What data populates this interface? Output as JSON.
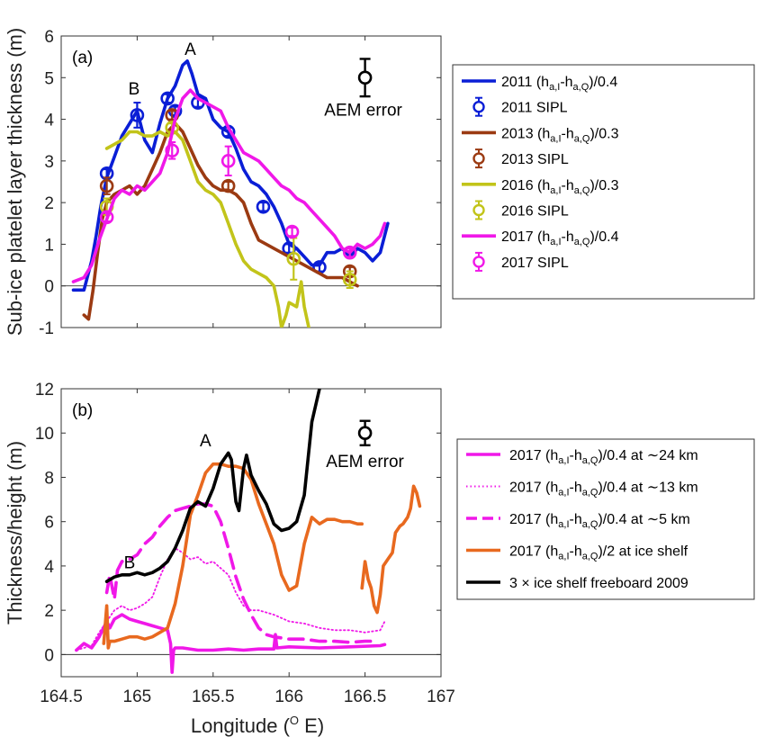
{
  "chart_data": [
    {
      "id": "a",
      "type": "line",
      "panel_label": "(a)",
      "ylabel": "Sub-ice platelet layer thickness (m)",
      "xlim": [
        164.5,
        167
      ],
      "ylim": [
        -1,
        6
      ],
      "yticks": [
        "-1",
        "0",
        "1",
        "2",
        "3",
        "4",
        "5",
        "6"
      ],
      "annotations": [
        {
          "text": "A",
          "x": 165.35,
          "y": 5.55
        },
        {
          "text": "B",
          "x": 164.98,
          "y": 4.6
        }
      ],
      "error_bar": {
        "label": "AEM error",
        "x": 166.5,
        "y": 5.0,
        "err": 0.45
      },
      "legend_position": "outside-right",
      "series": [
        {
          "name": "2011 (hₐ,I-hₐ,Q)/0.4",
          "legend_main": "2011 (h",
          "legend_sub": "a,I",
          "legend_mid": "-h",
          "legend_sub2": "a,Q",
          "legend_tail": ")/0.4",
          "color": "#0a1ed6",
          "kind": "line",
          "x": [
            164.58,
            164.65,
            164.7,
            164.73,
            164.76,
            164.8,
            164.85,
            164.9,
            164.95,
            165.0,
            165.05,
            165.1,
            165.15,
            165.2,
            165.25,
            165.3,
            165.33,
            165.36,
            165.4,
            165.45,
            165.5,
            165.55,
            165.6,
            165.65,
            165.7,
            165.75,
            165.8,
            165.85,
            165.9,
            165.95,
            166.0,
            166.05,
            166.1,
            166.15,
            166.2,
            166.25,
            166.3,
            166.35,
            166.4,
            166.45,
            166.5,
            166.55,
            166.6,
            166.65
          ],
          "y": [
            -0.1,
            -0.1,
            0.6,
            1.2,
            1.9,
            2.6,
            3.1,
            3.6,
            3.9,
            4.2,
            3.5,
            3.2,
            3.9,
            4.5,
            4.8,
            5.3,
            5.4,
            5.1,
            4.6,
            4.5,
            4.0,
            3.8,
            3.7,
            3.3,
            2.8,
            2.5,
            2.4,
            2.2,
            1.9,
            1.5,
            1.0,
            0.9,
            0.7,
            0.5,
            0.5,
            0.8,
            0.8,
            0.9,
            0.7,
            0.9,
            0.8,
            0.6,
            0.8,
            1.5
          ]
        },
        {
          "name": "2011 SIPL",
          "color": "#0a1ed6",
          "kind": "points",
          "x": [
            164.8,
            165.0,
            165.2,
            165.25,
            165.4,
            165.6,
            165.83,
            166.0,
            166.2
          ],
          "y": [
            2.7,
            4.1,
            4.5,
            4.2,
            4.4,
            3.7,
            1.9,
            0.9,
            0.45
          ],
          "err": [
            0.1,
            0.3,
            0.1,
            0.1,
            0.1,
            0.1,
            0.1,
            0.1,
            0.1
          ]
        },
        {
          "name": "2013 (hₐ,I-hₐ,Q)/0.3",
          "legend_main": "2013 (h",
          "legend_sub": "a,I",
          "legend_mid": "-h",
          "legend_sub2": "a,Q",
          "legend_tail": ")/0.3",
          "color": "#9b3a12",
          "kind": "line",
          "x": [
            164.65,
            164.68,
            164.71,
            164.74,
            164.77,
            164.8,
            164.85,
            164.9,
            164.95,
            165.0,
            165.05,
            165.1,
            165.15,
            165.2,
            165.25,
            165.3,
            165.35,
            165.4,
            165.45,
            165.5,
            165.55,
            165.6,
            165.65,
            165.7,
            165.75,
            165.8,
            165.85,
            165.9,
            165.95,
            166.0,
            166.05,
            166.1,
            166.15,
            166.2,
            166.25,
            166.3,
            166.35,
            166.4,
            166.45
          ],
          "y": [
            -0.7,
            -0.8,
            -0.1,
            0.8,
            1.6,
            2.0,
            2.2,
            2.3,
            2.4,
            2.2,
            2.4,
            2.8,
            3.2,
            3.7,
            3.9,
            3.7,
            3.3,
            2.9,
            2.6,
            2.4,
            2.3,
            2.3,
            2.2,
            2.0,
            1.5,
            1.1,
            1.0,
            0.9,
            0.8,
            0.7,
            0.6,
            0.5,
            0.4,
            0.3,
            0.2,
            0.2,
            0.2,
            0.1,
            0.0
          ]
        },
        {
          "name": "2013 SIPL",
          "color": "#9b3a12",
          "kind": "points",
          "x": [
            164.8,
            165.23,
            165.6,
            166.4
          ],
          "y": [
            2.4,
            4.1,
            2.4,
            0.35
          ],
          "err": [
            0.2,
            0.1,
            0.1,
            0.1
          ]
        },
        {
          "name": "2016 (hₐ,I-hₐ,Q)/0.3",
          "legend_main": "2016 (h",
          "legend_sub": "a,I",
          "legend_mid": "-h",
          "legend_sub2": "a,Q",
          "legend_tail": ")/0.3",
          "color": "#c2c41a",
          "kind": "line",
          "x": [
            164.8,
            164.85,
            164.9,
            164.95,
            165.0,
            165.05,
            165.1,
            165.15,
            165.2,
            165.25,
            165.3,
            165.35,
            165.4,
            165.45,
            165.5,
            165.55,
            165.6,
            165.65,
            165.7,
            165.75,
            165.8,
            165.85,
            165.9,
            165.93,
            165.95,
            165.98,
            166.0,
            166.05,
            166.08,
            166.1,
            166.13
          ],
          "y": [
            3.3,
            3.4,
            3.5,
            3.7,
            3.7,
            3.6,
            3.6,
            3.7,
            3.6,
            3.7,
            3.5,
            3.0,
            2.5,
            2.3,
            2.2,
            2.0,
            1.5,
            1.0,
            0.6,
            0.4,
            0.3,
            0.2,
            0.0,
            -0.5,
            -1.0,
            -0.7,
            -0.4,
            -0.5,
            0.1,
            -0.5,
            -1.0
          ]
        },
        {
          "name": "2016 SIPL",
          "color": "#c2c41a",
          "kind": "points",
          "x": [
            164.8,
            165.23,
            166.03,
            166.4
          ],
          "y": [
            1.9,
            3.8,
            0.65,
            0.15
          ],
          "err": [
            0.2,
            0.1,
            0.5,
            0.2
          ]
        },
        {
          "name": "2017 (hₐ,I-hₐ,Q)/0.4",
          "legend_main": "2017 (h",
          "legend_sub": "a,I",
          "legend_mid": "-h",
          "legend_sub2": "a,Q",
          "legend_tail": ")/0.4",
          "color": "#f018e8",
          "kind": "line",
          "x": [
            164.58,
            164.65,
            164.7,
            164.75,
            164.8,
            164.85,
            164.9,
            164.95,
            165.0,
            165.05,
            165.1,
            165.15,
            165.2,
            165.25,
            165.3,
            165.35,
            165.4,
            165.45,
            165.5,
            165.55,
            165.6,
            165.65,
            165.7,
            165.75,
            165.8,
            165.85,
            165.9,
            165.95,
            166.0,
            166.05,
            166.1,
            166.15,
            166.2,
            166.25,
            166.3,
            166.35,
            166.4,
            166.45,
            166.5,
            166.55,
            166.6,
            166.63
          ],
          "y": [
            0.1,
            0.2,
            0.5,
            1.1,
            1.6,
            2.1,
            2.3,
            2.2,
            2.4,
            2.3,
            2.5,
            2.7,
            3.2,
            4.0,
            4.5,
            4.7,
            4.5,
            4.4,
            4.3,
            4.2,
            3.8,
            3.5,
            3.2,
            3.1,
            3.0,
            2.8,
            2.6,
            2.4,
            2.3,
            2.1,
            2.0,
            1.8,
            1.6,
            1.4,
            1.2,
            0.9,
            0.8,
            1.0,
            0.9,
            1.0,
            1.2,
            1.5
          ]
        },
        {
          "name": "2017 SIPL",
          "color": "#f018e8",
          "kind": "points",
          "x": [
            164.8,
            165.23,
            165.6,
            166.02,
            166.4
          ],
          "y": [
            1.65,
            3.25,
            3.0,
            1.3,
            0.8
          ],
          "err": [
            0.1,
            0.2,
            0.35,
            0.1,
            0.1
          ]
        }
      ]
    },
    {
      "id": "b",
      "type": "line",
      "panel_label": "(b)",
      "ylabel": "Thickness/height (m)",
      "xlabel_main": "Longitude (",
      "xlabel_sup": "O",
      "xlabel_tail": " E)",
      "xlim": [
        164.5,
        167
      ],
      "ylim": [
        -1,
        12
      ],
      "xticks": [
        "164.5",
        "165",
        "165.5",
        "166",
        "166.5",
        "167"
      ],
      "yticks": [
        "0",
        "2",
        "4",
        "6",
        "8",
        "10",
        "12"
      ],
      "annotations": [
        {
          "text": "A",
          "x": 165.45,
          "y": 9.4
        },
        {
          "text": "B",
          "x": 164.95,
          "y": 3.9
        }
      ],
      "error_bar": {
        "label": "AEM error",
        "x": 166.5,
        "y": 10.0,
        "err": 0.55
      },
      "legend_position": "outside-right",
      "series": [
        {
          "legend_main": "2017 (h",
          "legend_sub": "a,I",
          "legend_mid": "-h",
          "legend_sub2": "a,Q",
          "legend_tail": ")/0.4 at ∼24 km",
          "color": "#f018e8",
          "dash": "solid",
          "x": [
            164.6,
            164.65,
            164.7,
            164.75,
            164.8,
            164.82,
            164.85,
            164.9,
            164.95,
            165.0,
            165.05,
            165.1,
            165.15,
            165.2,
            165.22,
            165.23,
            165.24,
            165.25,
            165.3,
            165.4,
            165.5,
            165.6,
            165.7,
            165.8,
            165.9,
            165.91,
            165.92,
            166.0,
            166.2,
            166.4,
            166.6,
            166.63
          ],
          "y": [
            0.2,
            0.5,
            0.3,
            0.8,
            1.5,
            1.2,
            1.6,
            1.8,
            1.6,
            1.5,
            1.4,
            1.3,
            1.2,
            1.1,
            0.5,
            -0.8,
            0.2,
            0.3,
            0.3,
            0.2,
            0.2,
            0.25,
            0.2,
            0.25,
            0.25,
            0.9,
            0.3,
            0.35,
            0.3,
            0.35,
            0.4,
            0.45
          ]
        },
        {
          "legend_main": "2017 (h",
          "legend_sub": "a,I",
          "legend_mid": "-h",
          "legend_sub2": "a,Q",
          "legend_tail": ")/0.4 at ∼13 km",
          "color": "#f018e8",
          "dash": "dotted",
          "x": [
            164.6,
            164.7,
            164.75,
            164.8,
            164.85,
            164.9,
            164.95,
            165.0,
            165.05,
            165.1,
            165.15,
            165.2,
            165.25,
            165.3,
            165.35,
            165.4,
            165.45,
            165.5,
            165.55,
            165.6,
            165.65,
            165.7,
            165.75,
            165.8,
            165.85,
            165.9,
            166.0,
            166.1,
            166.2,
            166.3,
            166.4,
            166.5,
            166.6,
            166.63
          ],
          "y": [
            0.2,
            0.4,
            1.0,
            1.5,
            2.0,
            2.2,
            2.0,
            2.1,
            2.3,
            2.6,
            3.5,
            4.3,
            4.8,
            4.6,
            4.3,
            4.4,
            4.1,
            4.2,
            3.9,
            3.6,
            2.8,
            2.2,
            2.0,
            2.0,
            1.9,
            1.8,
            1.5,
            1.4,
            1.2,
            1.1,
            1.1,
            1.0,
            1.1,
            1.5
          ]
        },
        {
          "legend_main": "2017 (h",
          "legend_sub": "a,I",
          "legend_mid": "-h",
          "legend_sub2": "a,Q",
          "legend_tail": ")/0.4 at ∼5 km",
          "color": "#f018e8",
          "dash": "dashed",
          "x": [
            164.8,
            164.82,
            164.85,
            164.87,
            164.9,
            164.95,
            165.0,
            165.05,
            165.1,
            165.15,
            165.2,
            165.25,
            165.3,
            165.35,
            165.4,
            165.45,
            165.5,
            165.55,
            165.6,
            165.65,
            165.7,
            165.75,
            165.8,
            165.85,
            165.9,
            166.0,
            166.1,
            166.2,
            166.3,
            166.4,
            166.5,
            166.55
          ],
          "y": [
            2.8,
            3.6,
            2.5,
            3.8,
            4.2,
            4.3,
            4.5,
            5.0,
            5.3,
            5.8,
            6.2,
            6.5,
            6.6,
            6.7,
            6.8,
            6.8,
            6.7,
            6.0,
            4.8,
            3.5,
            2.5,
            1.8,
            1.2,
            0.9,
            0.8,
            0.7,
            0.7,
            0.6,
            0.6,
            0.55,
            0.6,
            0.6
          ]
        },
        {
          "legend_main": "2017 (h",
          "legend_sub": "a,I",
          "legend_mid": "-h",
          "legend_sub2": "a,Q",
          "legend_tail": ")/2 at ice shelf",
          "color": "#e8691f",
          "dash": "solid",
          "x": [
            164.78,
            164.8,
            164.81,
            164.82,
            164.85,
            164.9,
            164.95,
            165.0,
            165.05,
            165.1,
            165.15,
            165.2,
            165.25,
            165.3,
            165.35,
            165.4,
            165.45,
            165.5,
            165.55,
            165.6,
            165.65,
            165.7,
            165.75,
            165.8,
            165.85,
            165.9,
            165.95,
            166.0,
            166.05,
            166.1,
            166.15,
            166.2,
            166.25,
            166.3,
            166.35,
            166.4,
            166.45,
            166.48
          ],
          "y": [
            0.5,
            2.2,
            0.3,
            0.6,
            0.6,
            0.7,
            0.8,
            0.8,
            0.7,
            0.8,
            1.0,
            1.2,
            2.3,
            4.0,
            6.3,
            7.2,
            8.2,
            8.6,
            8.6,
            8.5,
            8.5,
            8.4,
            7.9,
            6.8,
            5.9,
            5.0,
            3.6,
            2.9,
            3.1,
            5.0,
            6.2,
            5.9,
            6.1,
            6.1,
            6.0,
            6.0,
            5.9,
            5.9
          ]
        },
        {
          "legend_main": "3 × ice shelf freeboard 2009",
          "color": "#000000",
          "dash": "solid",
          "x": [
            164.8,
            164.85,
            164.9,
            164.95,
            165.0,
            165.05,
            165.1,
            165.15,
            165.2,
            165.25,
            165.3,
            165.35,
            165.4,
            165.45,
            165.5,
            165.55,
            165.6,
            165.62,
            165.65,
            165.67,
            165.7,
            165.72,
            165.75,
            165.8,
            165.85,
            165.9,
            165.95,
            166.0,
            166.05,
            166.1,
            166.15,
            166.2
          ],
          "y": [
            3.3,
            3.5,
            3.6,
            3.6,
            3.7,
            3.6,
            3.7,
            3.9,
            4.2,
            4.8,
            5.6,
            6.6,
            6.9,
            6.7,
            7.5,
            8.6,
            9.1,
            8.8,
            6.9,
            6.5,
            8.4,
            9.0,
            8.1,
            7.4,
            6.8,
            5.9,
            5.6,
            5.7,
            6.0,
            7.2,
            10.5,
            12.0
          ]
        },
        {
          "color": "#e8691f",
          "dash": "solid",
          "nolegend": true,
          "x": [
            166.48,
            166.5,
            166.52,
            166.54,
            166.56,
            166.58,
            166.6,
            166.62,
            166.65,
            166.68,
            166.7,
            166.73,
            166.75,
            166.78,
            166.8,
            166.82,
            166.84,
            166.86
          ],
          "y": [
            3.0,
            4.2,
            3.4,
            3.0,
            2.2,
            1.9,
            2.7,
            4.0,
            4.3,
            4.6,
            5.5,
            5.8,
            5.9,
            6.2,
            6.6,
            7.6,
            7.3,
            6.7
          ]
        }
      ]
    }
  ]
}
